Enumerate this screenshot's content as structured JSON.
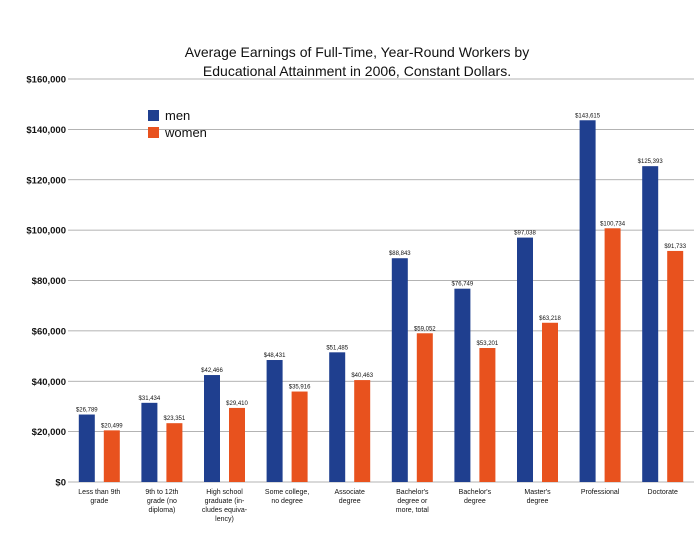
{
  "chart_data": {
    "type": "bar",
    "title_lines": [
      "Average Earnings of Full-Time, Year-Round Workers by",
      "Educational Attainment in 2006, Constant Dollars."
    ],
    "xlabel": "",
    "ylabel": "",
    "ylim": [
      0,
      160000
    ],
    "yticks": [
      0,
      20000,
      40000,
      60000,
      80000,
      100000,
      120000,
      140000,
      160000
    ],
    "ytick_labels": [
      "$0",
      "$20,000",
      "$40,000",
      "$60,000",
      "$80,000",
      "$100,000",
      "$120,000",
      "$140,000",
      "$160,000"
    ],
    "grid": true,
    "legend_position": "top-left",
    "categories": [
      [
        "Less than 9th",
        "grade"
      ],
      [
        "9th to 12th",
        "grade (no",
        "diploma)"
      ],
      [
        "High school",
        "graduate (in-",
        "cludes equiva-",
        "lency)"
      ],
      [
        "Some college,",
        "no degree"
      ],
      [
        "Associate",
        "degree"
      ],
      [
        "Bachelor's",
        "degree or",
        "more, total"
      ],
      [
        "Bachelor's",
        "degree"
      ],
      [
        "Master's",
        "degree"
      ],
      [
        "Professional"
      ],
      [
        "Doctorate"
      ]
    ],
    "series": [
      {
        "name": "men",
        "color": "#1f3f8f",
        "values": [
          26789,
          31434,
          42466,
          48431,
          51485,
          88843,
          76749,
          97038,
          143615,
          125393
        ],
        "labels": [
          "$26,789",
          "$31,434",
          "$42,466",
          "$48,431",
          "$51,485",
          "$88,843",
          "$76,749",
          "$97,038",
          "$143,615",
          "$125,393"
        ]
      },
      {
        "name": "women",
        "color": "#e8521e",
        "values": [
          20499,
          23351,
          29410,
          35916,
          40463,
          59052,
          53201,
          63218,
          100734,
          91733
        ],
        "labels": [
          "$20,499",
          "$23,351",
          "$29,410",
          "$35,916",
          "$40,463",
          "$59,052",
          "$53,201",
          "$63,218",
          "$100,734",
          "$91,733"
        ]
      }
    ]
  }
}
